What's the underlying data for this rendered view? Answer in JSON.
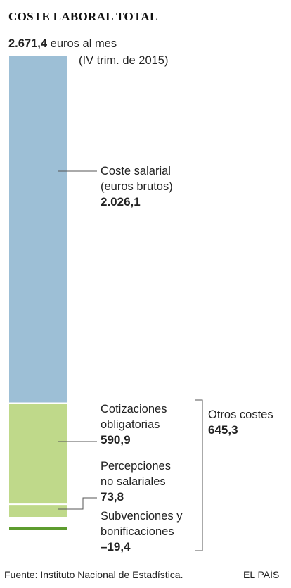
{
  "chart_data": {
    "type": "bar",
    "title": "COSTE LABORAL TOTAL",
    "total": {
      "value": "2.671,4",
      "unit": "euros al mes",
      "period": "(IV trim. de 2015)"
    },
    "segments": [
      {
        "key": "salarial",
        "name_lines": [
          "Coste salarial",
          "(euros brutos)"
        ],
        "value": 2026.1,
        "label": "2.026,1",
        "color": "#9dbfd6"
      },
      {
        "key": "cotizaciones",
        "name_lines": [
          "Cotizaciones",
          "obligatorias"
        ],
        "value": 590.9,
        "label": "590,9",
        "color": "#bfd98a"
      },
      {
        "key": "percepciones",
        "name_lines": [
          "Percepciones",
          "no salariales"
        ],
        "value": 73.8,
        "label": "73,8",
        "color": "#bfd98a"
      },
      {
        "key": "subvenciones",
        "name_lines": [
          "Subvenciones y",
          "bonificaciones"
        ],
        "value": -19.4,
        "label": "–19,4",
        "color": "#5d9c2e"
      }
    ],
    "group": {
      "name": "Otros costes",
      "value": 645.3,
      "label": "645,3"
    }
  },
  "footer": {
    "source": "Fuente: Instituto Nacional de Estadística.",
    "brand": "EL PAÍS"
  },
  "colors": {
    "leader": "#555555",
    "divider": "#ffffff"
  }
}
